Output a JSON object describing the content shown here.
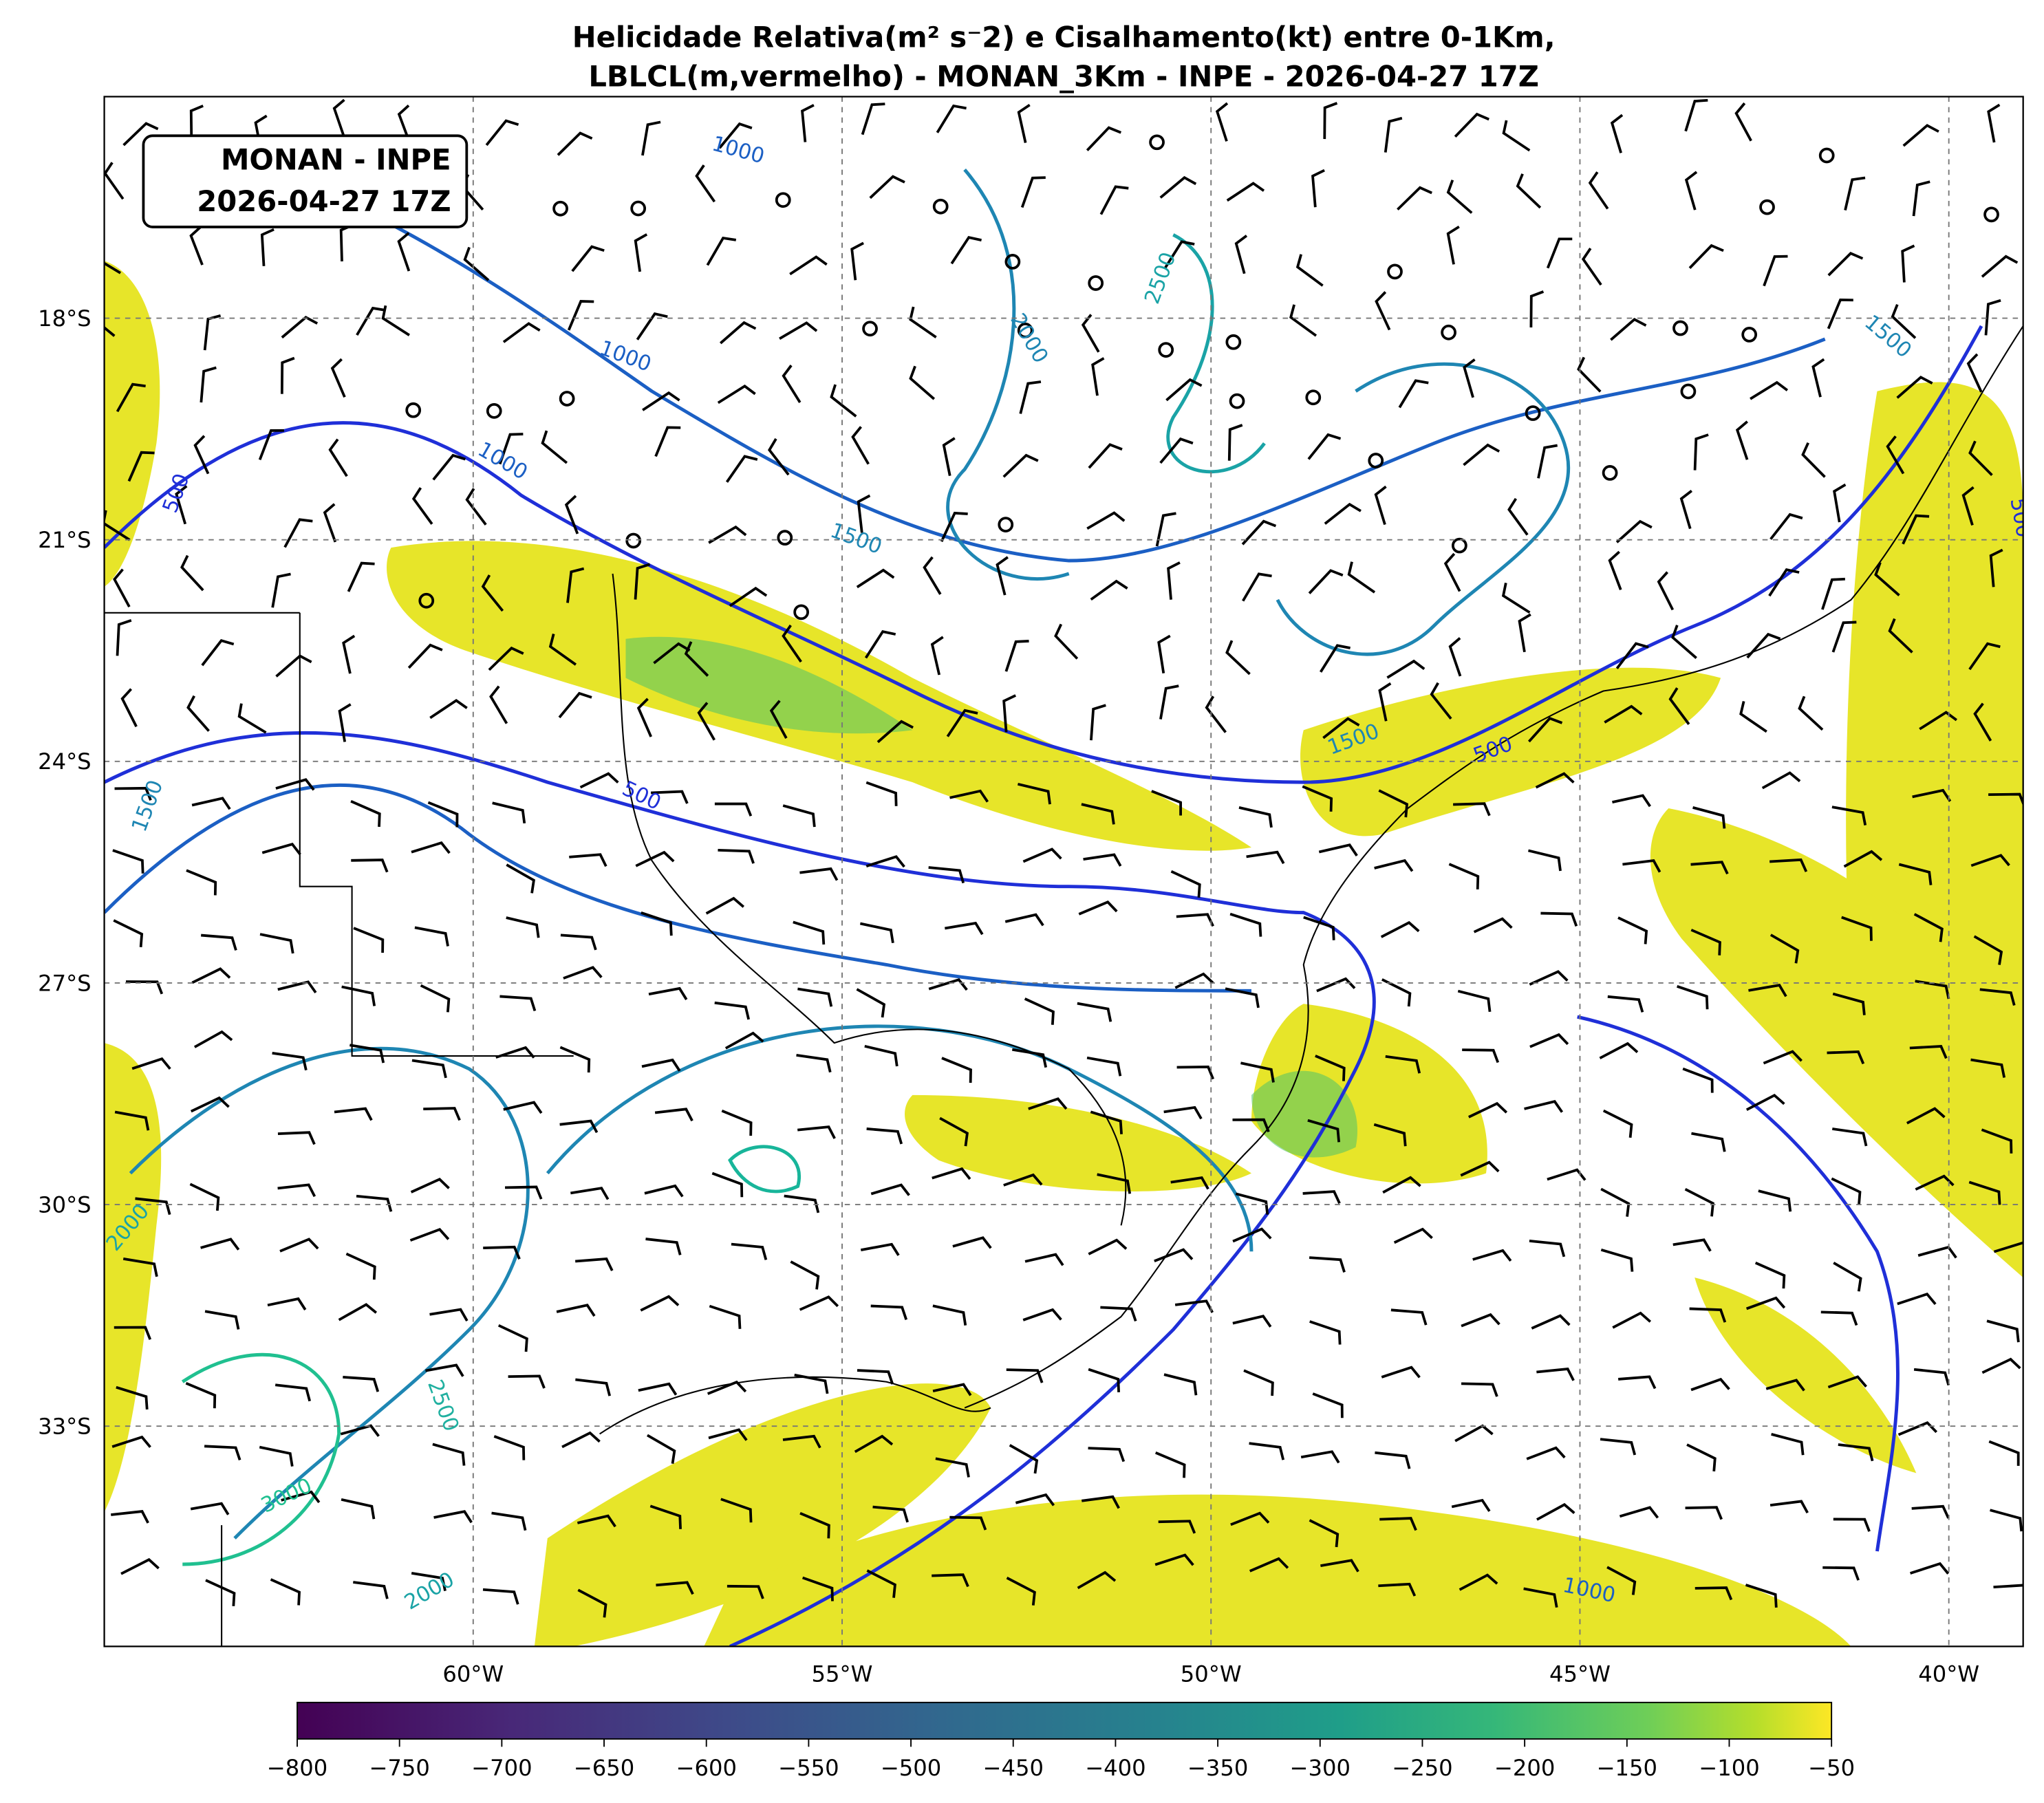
{
  "title": {
    "line1": "Helicidade Relativa(m² s⁻2) e Cisalhamento(kt) entre 0-1Km,",
    "line2": "LBLCL(m,vermelho) - MONAN_3Km - INPE - 2026-04-27 17Z"
  },
  "info_box": {
    "line1": "MONAN - INPE",
    "line2": "2026-04-27 17Z"
  },
  "map": {
    "lat_labels": [
      "18°S",
      "21°S",
      "24°S",
      "27°S",
      "30°S",
      "33°S"
    ],
    "lon_labels": [
      "60°W",
      "55°W",
      "50°W",
      "45°W",
      "40°W"
    ],
    "contour_labels": [
      "1000",
      "1000",
      "1000",
      "500",
      "500",
      "1500",
      "1500",
      "2000",
      "2500",
      "1500",
      "500",
      "1500",
      "2000",
      "2500",
      "3000",
      "2000",
      "1000",
      "500"
    ]
  },
  "colorbar": {
    "tick_labels": [
      "−800",
      "−750",
      "−700",
      "−650",
      "−600",
      "−550",
      "−500",
      "−450",
      "−400",
      "−350",
      "−300",
      "−250",
      "−200",
      "−150",
      "−100",
      "−50"
    ]
  }
}
